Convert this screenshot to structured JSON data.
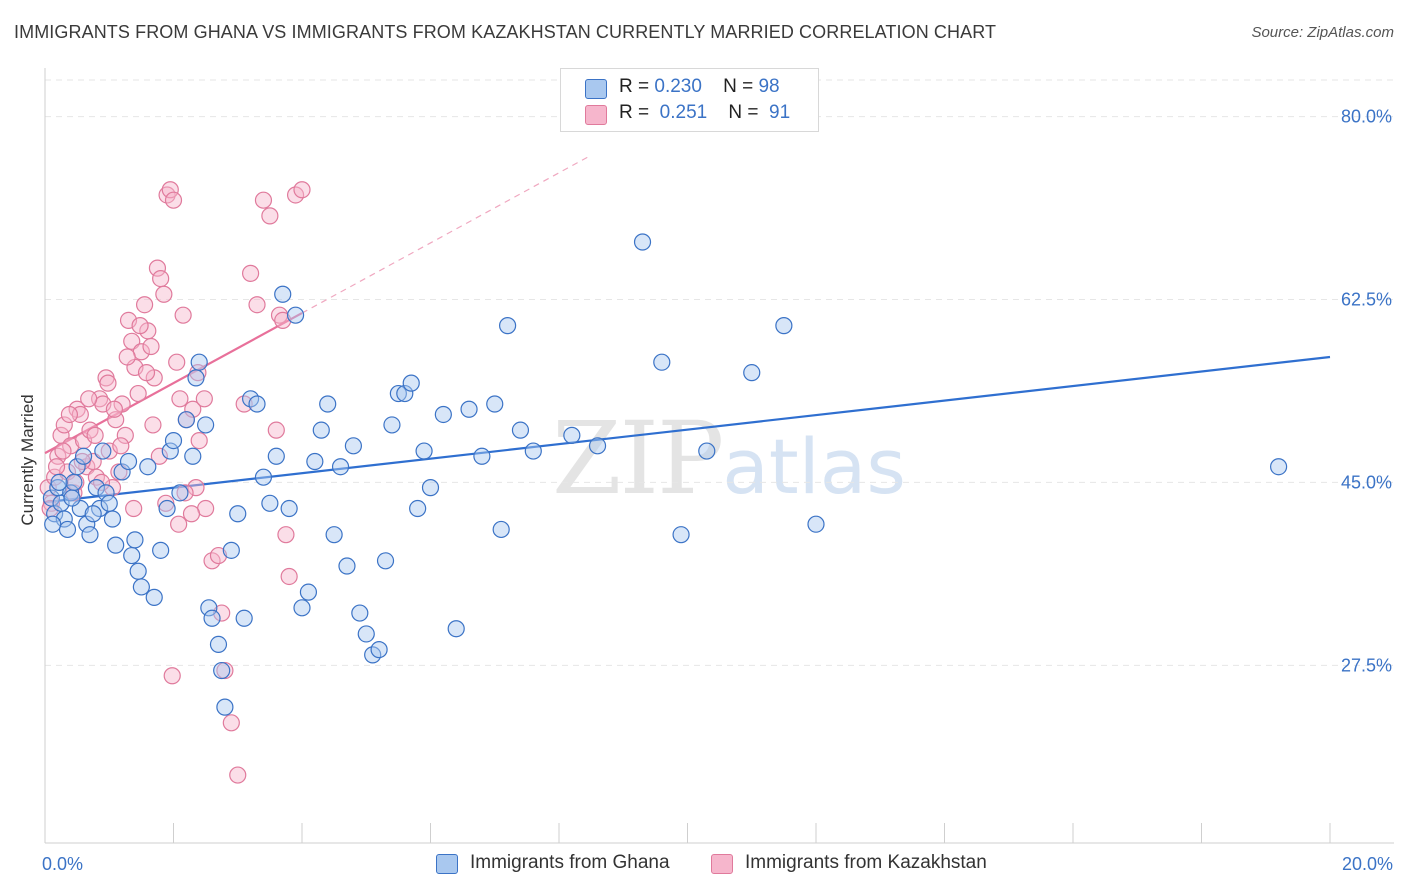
{
  "title": "IMMIGRANTS FROM GHANA VS IMMIGRANTS FROM KAZAKHSTAN CURRENTLY MARRIED CORRELATION CHART",
  "source": "Source: ZipAtlas.com",
  "watermark": {
    "zip": "ZIP",
    "atlas": "atlas"
  },
  "colors": {
    "blue_fill": "#a9c8ef",
    "blue_stroke": "#3b73c6",
    "blue_line": "#2f6fd0",
    "pink_fill": "#f6b6cc",
    "pink_stroke": "#e07a9c",
    "pink_line": "#e8709a",
    "grid": "#e6e6e6",
    "tick_label": "#3b73c6"
  },
  "legend": {
    "rows": [
      {
        "r_label": "R =",
        "r_value": "0.230",
        "n_label": "N =",
        "n_value": "98"
      },
      {
        "r_label": "R =",
        "r_value": "0.251",
        "n_label": "N =",
        "n_value": "91"
      }
    ]
  },
  "bottom_legend": [
    "Immigrants from Ghana",
    "Immigrants from Kazakhstan"
  ],
  "chart_data": {
    "type": "scatter",
    "title": "IMMIGRANTS FROM GHANA VS IMMIGRANTS FROM KAZAKHSTAN CURRENTLY MARRIED CORRELATION CHART",
    "xlabel": "",
    "ylabel": "Currently Married",
    "xlim": [
      0,
      20
    ],
    "ylim": [
      10.5,
      83.5
    ],
    "x_tick_labels": [
      "0.0%",
      "20.0%"
    ],
    "y_ticks": [
      27.5,
      45.0,
      62.5,
      80.0
    ],
    "y_tick_labels": [
      "27.5%",
      "45.0%",
      "62.5%",
      "80.0%"
    ],
    "grid": true,
    "series": [
      {
        "name": "Immigrants from Ghana",
        "R": 0.23,
        "N": 98,
        "trend": {
          "x": [
            0.0,
            20.0
          ],
          "y": [
            43.1,
            57.0
          ]
        },
        "points": [
          [
            0.1,
            43.5
          ],
          [
            0.15,
            42.0
          ],
          [
            0.2,
            44.5
          ],
          [
            0.25,
            43.0
          ],
          [
            0.3,
            41.5
          ],
          [
            0.35,
            40.5
          ],
          [
            0.4,
            44.0
          ],
          [
            0.45,
            45.0
          ],
          [
            0.5,
            46.5
          ],
          [
            0.55,
            42.5
          ],
          [
            0.6,
            47.5
          ],
          [
            0.65,
            41.0
          ],
          [
            0.7,
            40.0
          ],
          [
            0.8,
            44.5
          ],
          [
            0.85,
            42.5
          ],
          [
            0.9,
            48.0
          ],
          [
            0.95,
            44.0
          ],
          [
            1.0,
            43.0
          ],
          [
            1.05,
            41.5
          ],
          [
            1.1,
            39.0
          ],
          [
            1.2,
            46.0
          ],
          [
            1.3,
            47.0
          ],
          [
            1.35,
            38.0
          ],
          [
            1.4,
            39.5
          ],
          [
            1.45,
            36.5
          ],
          [
            1.5,
            35.0
          ],
          [
            1.6,
            46.5
          ],
          [
            1.7,
            34.0
          ],
          [
            1.8,
            38.5
          ],
          [
            1.9,
            42.5
          ],
          [
            1.95,
            48.0
          ],
          [
            2.0,
            49.0
          ],
          [
            2.1,
            44.0
          ],
          [
            2.2,
            51.0
          ],
          [
            2.3,
            47.5
          ],
          [
            2.35,
            55.0
          ],
          [
            2.4,
            56.5
          ],
          [
            2.5,
            50.5
          ],
          [
            2.55,
            33.0
          ],
          [
            2.6,
            32.0
          ],
          [
            2.7,
            29.5
          ],
          [
            2.75,
            27.0
          ],
          [
            2.8,
            23.5
          ],
          [
            2.9,
            38.5
          ],
          [
            3.0,
            42.0
          ],
          [
            3.1,
            32.0
          ],
          [
            3.2,
            53.0
          ],
          [
            3.3,
            52.5
          ],
          [
            3.4,
            45.5
          ],
          [
            3.5,
            43.0
          ],
          [
            3.6,
            47.5
          ],
          [
            3.7,
            63.0
          ],
          [
            3.8,
            42.5
          ],
          [
            3.9,
            61.0
          ],
          [
            4.0,
            33.0
          ],
          [
            4.1,
            34.5
          ],
          [
            4.2,
            47.0
          ],
          [
            4.3,
            50.0
          ],
          [
            4.4,
            52.5
          ],
          [
            4.5,
            40.0
          ],
          [
            4.6,
            46.5
          ],
          [
            4.7,
            37.0
          ],
          [
            4.8,
            48.5
          ],
          [
            4.9,
            32.5
          ],
          [
            5.0,
            30.5
          ],
          [
            5.1,
            28.5
          ],
          [
            5.2,
            29.0
          ],
          [
            5.3,
            37.5
          ],
          [
            5.4,
            50.5
          ],
          [
            5.5,
            53.5
          ],
          [
            5.6,
            53.5
          ],
          [
            5.7,
            54.5
          ],
          [
            5.8,
            42.5
          ],
          [
            5.9,
            48.0
          ],
          [
            6.0,
            44.5
          ],
          [
            6.2,
            51.5
          ],
          [
            6.4,
            31.0
          ],
          [
            6.6,
            52.0
          ],
          [
            6.8,
            47.5
          ],
          [
            7.0,
            52.5
          ],
          [
            7.1,
            40.5
          ],
          [
            7.2,
            60.0
          ],
          [
            7.4,
            50.0
          ],
          [
            7.6,
            48.0
          ],
          [
            8.2,
            49.5
          ],
          [
            8.6,
            48.5
          ],
          [
            9.3,
            68.0
          ],
          [
            9.6,
            56.5
          ],
          [
            9.9,
            40.0
          ],
          [
            10.3,
            48.0
          ],
          [
            11.0,
            55.5
          ],
          [
            11.5,
            60.0
          ],
          [
            12.0,
            41.0
          ],
          [
            19.2,
            46.5
          ],
          [
            0.12,
            41.0
          ],
          [
            0.22,
            45.0
          ],
          [
            0.42,
            43.5
          ],
          [
            0.75,
            42.0
          ]
        ]
      },
      {
        "name": "Immigrants from Kazakhstan",
        "R": 0.251,
        "N": 91,
        "trend": {
          "x": [
            0.0,
            4.0
          ],
          "y": [
            47.8,
            61.2
          ]
        },
        "trend_extension": {
          "x": [
            4.0,
            8.5
          ],
          "y": [
            61.2,
            76.3
          ]
        },
        "points": [
          [
            0.05,
            44.5
          ],
          [
            0.1,
            43.0
          ],
          [
            0.15,
            45.5
          ],
          [
            0.2,
            47.5
          ],
          [
            0.25,
            49.5
          ],
          [
            0.3,
            50.5
          ],
          [
            0.35,
            46.0
          ],
          [
            0.4,
            48.5
          ],
          [
            0.45,
            44.0
          ],
          [
            0.5,
            52.0
          ],
          [
            0.55,
            51.5
          ],
          [
            0.6,
            49.0
          ],
          [
            0.65,
            46.5
          ],
          [
            0.7,
            50.0
          ],
          [
            0.75,
            47.0
          ],
          [
            0.8,
            45.5
          ],
          [
            0.85,
            53.0
          ],
          [
            0.9,
            52.5
          ],
          [
            0.95,
            55.0
          ],
          [
            1.0,
            48.0
          ],
          [
            1.05,
            44.5
          ],
          [
            1.1,
            51.0
          ],
          [
            1.15,
            46.0
          ],
          [
            1.2,
            52.5
          ],
          [
            1.25,
            49.5
          ],
          [
            1.3,
            60.5
          ],
          [
            1.35,
            58.5
          ],
          [
            1.4,
            56.0
          ],
          [
            1.45,
            53.5
          ],
          [
            1.5,
            57.5
          ],
          [
            1.55,
            62.0
          ],
          [
            1.6,
            59.5
          ],
          [
            1.65,
            58.0
          ],
          [
            1.7,
            55.0
          ],
          [
            1.75,
            65.5
          ],
          [
            1.8,
            64.5
          ],
          [
            1.85,
            63.0
          ],
          [
            1.9,
            72.5
          ],
          [
            1.95,
            73.0
          ],
          [
            2.0,
            72.0
          ],
          [
            2.05,
            56.5
          ],
          [
            2.1,
            53.0
          ],
          [
            2.15,
            61.0
          ],
          [
            2.2,
            51.0
          ],
          [
            2.3,
            52.0
          ],
          [
            2.35,
            44.5
          ],
          [
            2.4,
            49.0
          ],
          [
            2.5,
            42.5
          ],
          [
            2.6,
            37.5
          ],
          [
            2.7,
            38.0
          ],
          [
            2.75,
            32.5
          ],
          [
            2.8,
            27.0
          ],
          [
            2.9,
            22.0
          ],
          [
            3.0,
            17.0
          ],
          [
            3.1,
            52.5
          ],
          [
            3.2,
            65.0
          ],
          [
            3.3,
            62.0
          ],
          [
            3.4,
            72.0
          ],
          [
            3.5,
            70.5
          ],
          [
            3.6,
            50.0
          ],
          [
            3.65,
            61.0
          ],
          [
            3.7,
            60.5
          ],
          [
            3.75,
            40.0
          ],
          [
            3.8,
            36.0
          ],
          [
            3.9,
            72.5
          ],
          [
            4.0,
            73.0
          ],
          [
            0.08,
            42.5
          ],
          [
            0.18,
            46.5
          ],
          [
            0.28,
            48.0
          ],
          [
            0.38,
            51.5
          ],
          [
            0.48,
            45.0
          ],
          [
            0.58,
            47.0
          ],
          [
            0.68,
            53.0
          ],
          [
            0.78,
            49.5
          ],
          [
            0.88,
            45.0
          ],
          [
            0.98,
            54.5
          ],
          [
            1.08,
            52.0
          ],
          [
            1.18,
            48.5
          ],
          [
            1.28,
            57.0
          ],
          [
            1.38,
            42.5
          ],
          [
            1.48,
            60.0
          ],
          [
            1.58,
            55.5
          ],
          [
            1.68,
            50.5
          ],
          [
            1.78,
            47.5
          ],
          [
            1.88,
            43.0
          ],
          [
            1.98,
            26.5
          ],
          [
            2.08,
            41.0
          ],
          [
            2.18,
            44.0
          ],
          [
            2.28,
            42.0
          ],
          [
            2.38,
            55.5
          ],
          [
            2.48,
            53.0
          ]
        ]
      }
    ]
  }
}
